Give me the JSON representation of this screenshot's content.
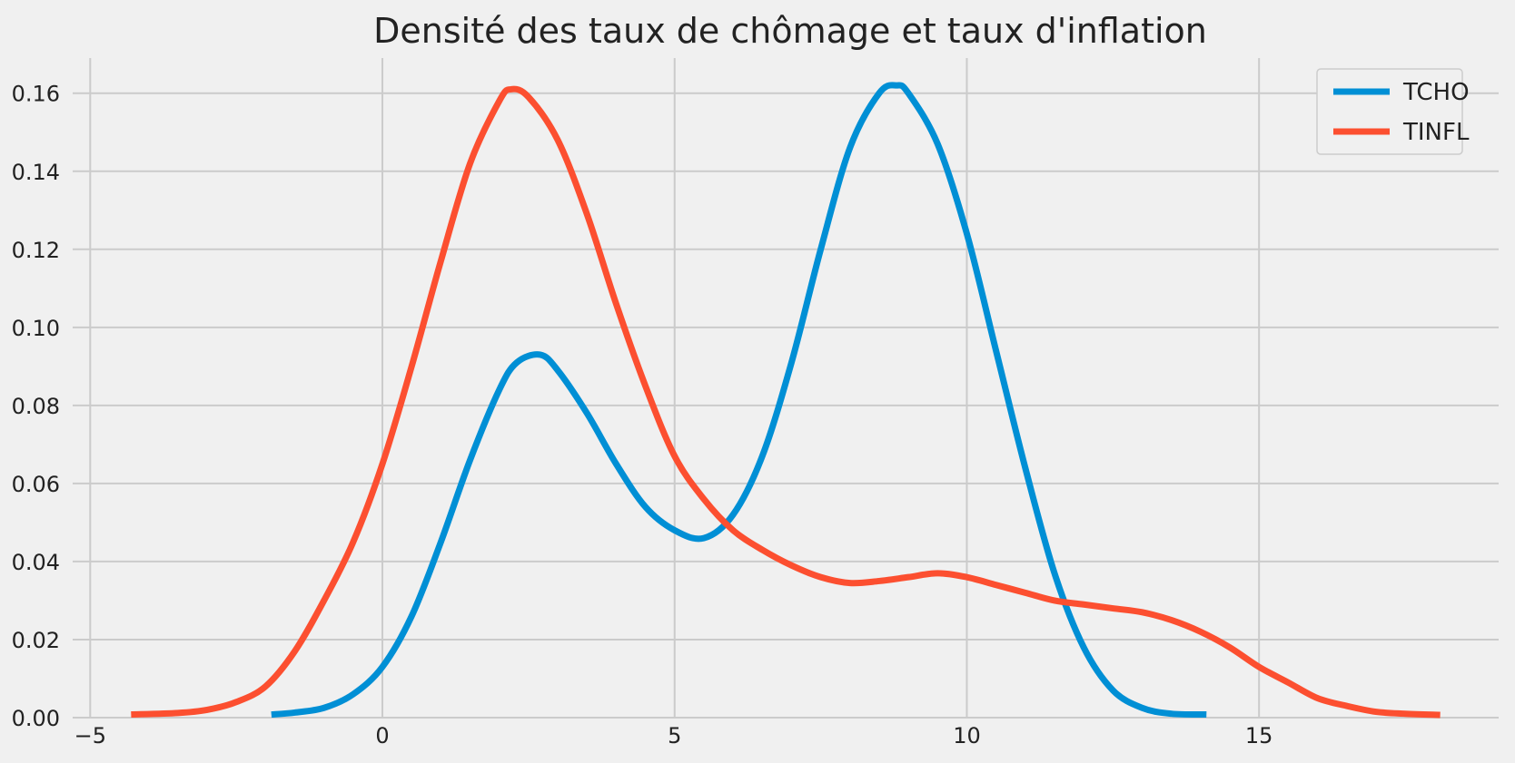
{
  "chart_data": {
    "type": "line",
    "title": "Densité des taux de chômage et taux d'inflation",
    "xlabel": "",
    "ylabel": "",
    "xlim": [
      -5.3,
      19.1
    ],
    "ylim": [
      0,
      0.169
    ],
    "x_ticks": [
      -5,
      0,
      5,
      10,
      15
    ],
    "x_tick_labels": [
      "−5",
      "0",
      "5",
      "10",
      "15"
    ],
    "y_ticks": [
      0,
      0.02,
      0.04,
      0.06,
      0.08,
      0.1,
      0.12,
      0.14,
      0.16
    ],
    "y_tick_labels": [
      "0.00",
      "0.02",
      "0.04",
      "0.06",
      "0.08",
      "0.10",
      "0.12",
      "0.14",
      "0.16"
    ],
    "grid": true,
    "legend_position": "top-right",
    "series": [
      {
        "name": "TCHO",
        "color": "#008fd5",
        "x": [
          -1.9,
          -1.5,
          -1.0,
          -0.5,
          0,
          0.5,
          1.0,
          1.5,
          2.0,
          2.3,
          2.7,
          3.0,
          3.5,
          4.0,
          4.5,
          5.0,
          5.5,
          6.0,
          6.5,
          7.0,
          7.5,
          8.0,
          8.5,
          8.8,
          9.0,
          9.5,
          10.0,
          10.5,
          11.0,
          11.5,
          12.0,
          12.5,
          13.0,
          13.5,
          14.1
        ],
        "y": [
          0.0008,
          0.0013,
          0.0025,
          0.006,
          0.013,
          0.026,
          0.045,
          0.066,
          0.084,
          0.091,
          0.093,
          0.089,
          0.078,
          0.065,
          0.054,
          0.048,
          0.046,
          0.052,
          0.067,
          0.091,
          0.12,
          0.146,
          0.16,
          0.162,
          0.16,
          0.147,
          0.124,
          0.094,
          0.064,
          0.037,
          0.018,
          0.007,
          0.0025,
          0.001,
          0.0008
        ]
      },
      {
        "name": "TINFL",
        "color": "#fc4f30",
        "x": [
          -4.3,
          -3.5,
          -3.0,
          -2.5,
          -2.0,
          -1.5,
          -1.0,
          -0.5,
          0,
          0.5,
          1.0,
          1.5,
          2.0,
          2.2,
          2.5,
          3.0,
          3.5,
          4.0,
          4.5,
          5.0,
          5.5,
          6.0,
          6.5,
          7.0,
          7.5,
          8.0,
          8.5,
          9.0,
          9.5,
          10.0,
          10.5,
          11.0,
          11.5,
          12.0,
          12.5,
          13.0,
          13.5,
          14.0,
          14.5,
          15.0,
          15.5,
          16.0,
          16.5,
          17.0,
          17.5,
          18.1
        ],
        "y": [
          0.0008,
          0.0012,
          0.002,
          0.004,
          0.008,
          0.017,
          0.03,
          0.045,
          0.065,
          0.09,
          0.117,
          0.142,
          0.158,
          0.161,
          0.159,
          0.148,
          0.129,
          0.106,
          0.085,
          0.067,
          0.056,
          0.048,
          0.043,
          0.039,
          0.036,
          0.0345,
          0.035,
          0.036,
          0.037,
          0.036,
          0.034,
          0.032,
          0.03,
          0.029,
          0.028,
          0.027,
          0.025,
          0.022,
          0.018,
          0.013,
          0.009,
          0.005,
          0.003,
          0.0015,
          0.001,
          0.0007
        ]
      }
    ]
  }
}
